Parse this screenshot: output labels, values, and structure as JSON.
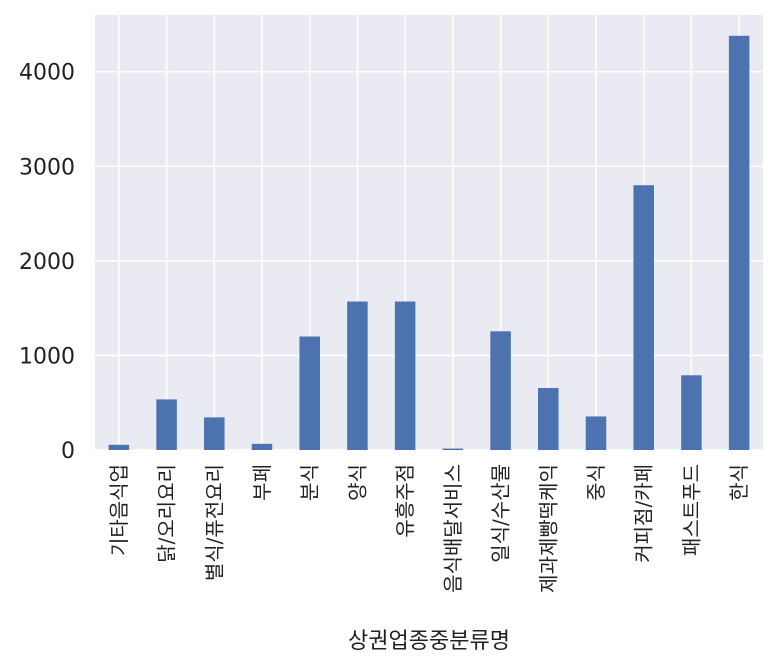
{
  "chart_data": {
    "type": "bar",
    "xlabel": "상권업종중분류명",
    "ylabel": "",
    "ylim": [
      0,
      4600
    ],
    "yticks": [
      0,
      1000,
      2000,
      3000,
      4000
    ],
    "grid": true,
    "legend": "none",
    "colors": {
      "bar": "#4c72b0",
      "plot_bg": "#eaeaf2",
      "grid": "#ffffff"
    },
    "categories": [
      "기타음식업",
      "닭/오리요리",
      "별식/퓨전요리",
      "부페",
      "분식",
      "양식",
      "유흥주점",
      "음식배달서비스",
      "일식/수산물",
      "제과제빵떡케익",
      "중식",
      "커피점/카페",
      "패스트푸드",
      "한식"
    ],
    "values": [
      55,
      535,
      345,
      65,
      1200,
      1570,
      1570,
      15,
      1255,
      655,
      355,
      2800,
      790,
      4380
    ]
  }
}
